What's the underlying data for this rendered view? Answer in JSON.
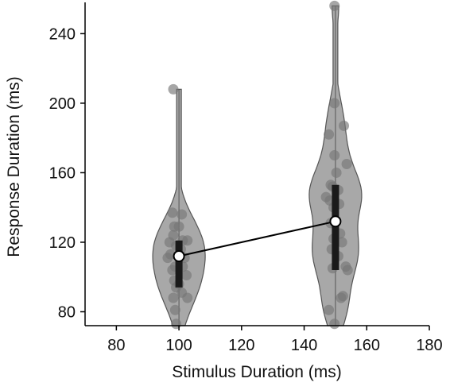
{
  "chart_data": {
    "type": "violin",
    "title": "",
    "xlabel": "Stimulus Duration (ms)",
    "ylabel": "Response Duration (ms)",
    "xlim": [
      70,
      180
    ],
    "ylim": [
      72,
      258
    ],
    "x_ticks": [
      80,
      100,
      120,
      140,
      160,
      180
    ],
    "y_ticks": [
      80,
      120,
      160,
      200,
      240
    ],
    "grid": false,
    "colors": {
      "violin_fill": "#a8a8a8",
      "violin_edge": "#555555",
      "points": "#777777",
      "box": "#1a1a1a",
      "line": "#000000",
      "median_fill": "#ffffff"
    },
    "groups": [
      {
        "x": 100,
        "median": 112,
        "q1": 94,
        "q3": 121,
        "min": 72,
        "max": 208,
        "points": [
          {
            "dx": -6,
            "y": 208
          },
          {
            "dx": -7,
            "y": 137
          },
          {
            "dx": 3,
            "y": 136
          },
          {
            "dx": -5,
            "y": 129
          },
          {
            "dx": 0,
            "y": 129
          },
          {
            "dx": -6,
            "y": 124
          },
          {
            "dx": 4,
            "y": 121
          },
          {
            "dx": 9,
            "y": 121
          },
          {
            "dx": -10,
            "y": 120
          },
          {
            "dx": -3,
            "y": 118
          },
          {
            "dx": 2,
            "y": 116
          },
          {
            "dx": -9,
            "y": 113
          },
          {
            "dx": -12,
            "y": 111
          },
          {
            "dx": 6,
            "y": 111
          },
          {
            "dx": -4,
            "y": 106
          },
          {
            "dx": 4,
            "y": 106
          },
          {
            "dx": -7,
            "y": 104
          },
          {
            "dx": 8,
            "y": 101
          },
          {
            "dx": -5,
            "y": 98
          },
          {
            "dx": 0,
            "y": 96
          },
          {
            "dx": -3,
            "y": 94
          },
          {
            "dx": 3,
            "y": 91
          },
          {
            "dx": -6,
            "y": 88
          },
          {
            "dx": 9,
            "y": 88
          },
          {
            "dx": -4,
            "y": 81
          },
          {
            "dx": -3,
            "y": 73
          }
        ]
      },
      {
        "x": 150,
        "median": 132,
        "q1": 104,
        "q3": 153,
        "min": 72,
        "max": 256,
        "points": [
          {
            "dx": -1,
            "y": 256
          },
          {
            "dx": -1,
            "y": 200
          },
          {
            "dx": 9,
            "y": 187
          },
          {
            "dx": -7,
            "y": 182
          },
          {
            "dx": -1,
            "y": 170
          },
          {
            "dx": 12,
            "y": 165
          },
          {
            "dx": 1,
            "y": 160
          },
          {
            "dx": -5,
            "y": 153
          },
          {
            "dx": -3,
            "y": 152
          },
          {
            "dx": 3,
            "y": 150
          },
          {
            "dx": -10,
            "y": 146
          },
          {
            "dx": -6,
            "y": 144
          },
          {
            "dx": 4,
            "y": 142
          },
          {
            "dx": -2,
            "y": 140
          },
          {
            "dx": -5,
            "y": 131
          },
          {
            "dx": 5,
            "y": 125
          },
          {
            "dx": -2,
            "y": 122
          },
          {
            "dx": 7,
            "y": 120
          },
          {
            "dx": -4,
            "y": 116
          },
          {
            "dx": 3,
            "y": 112
          },
          {
            "dx": 11,
            "y": 106
          },
          {
            "dx": -3,
            "y": 105
          },
          {
            "dx": 13,
            "y": 104
          },
          {
            "dx": 8,
            "y": 89
          },
          {
            "dx": 6,
            "y": 88
          },
          {
            "dx": -7,
            "y": 81
          },
          {
            "dx": -1,
            "y": 73
          }
        ]
      }
    ]
  }
}
